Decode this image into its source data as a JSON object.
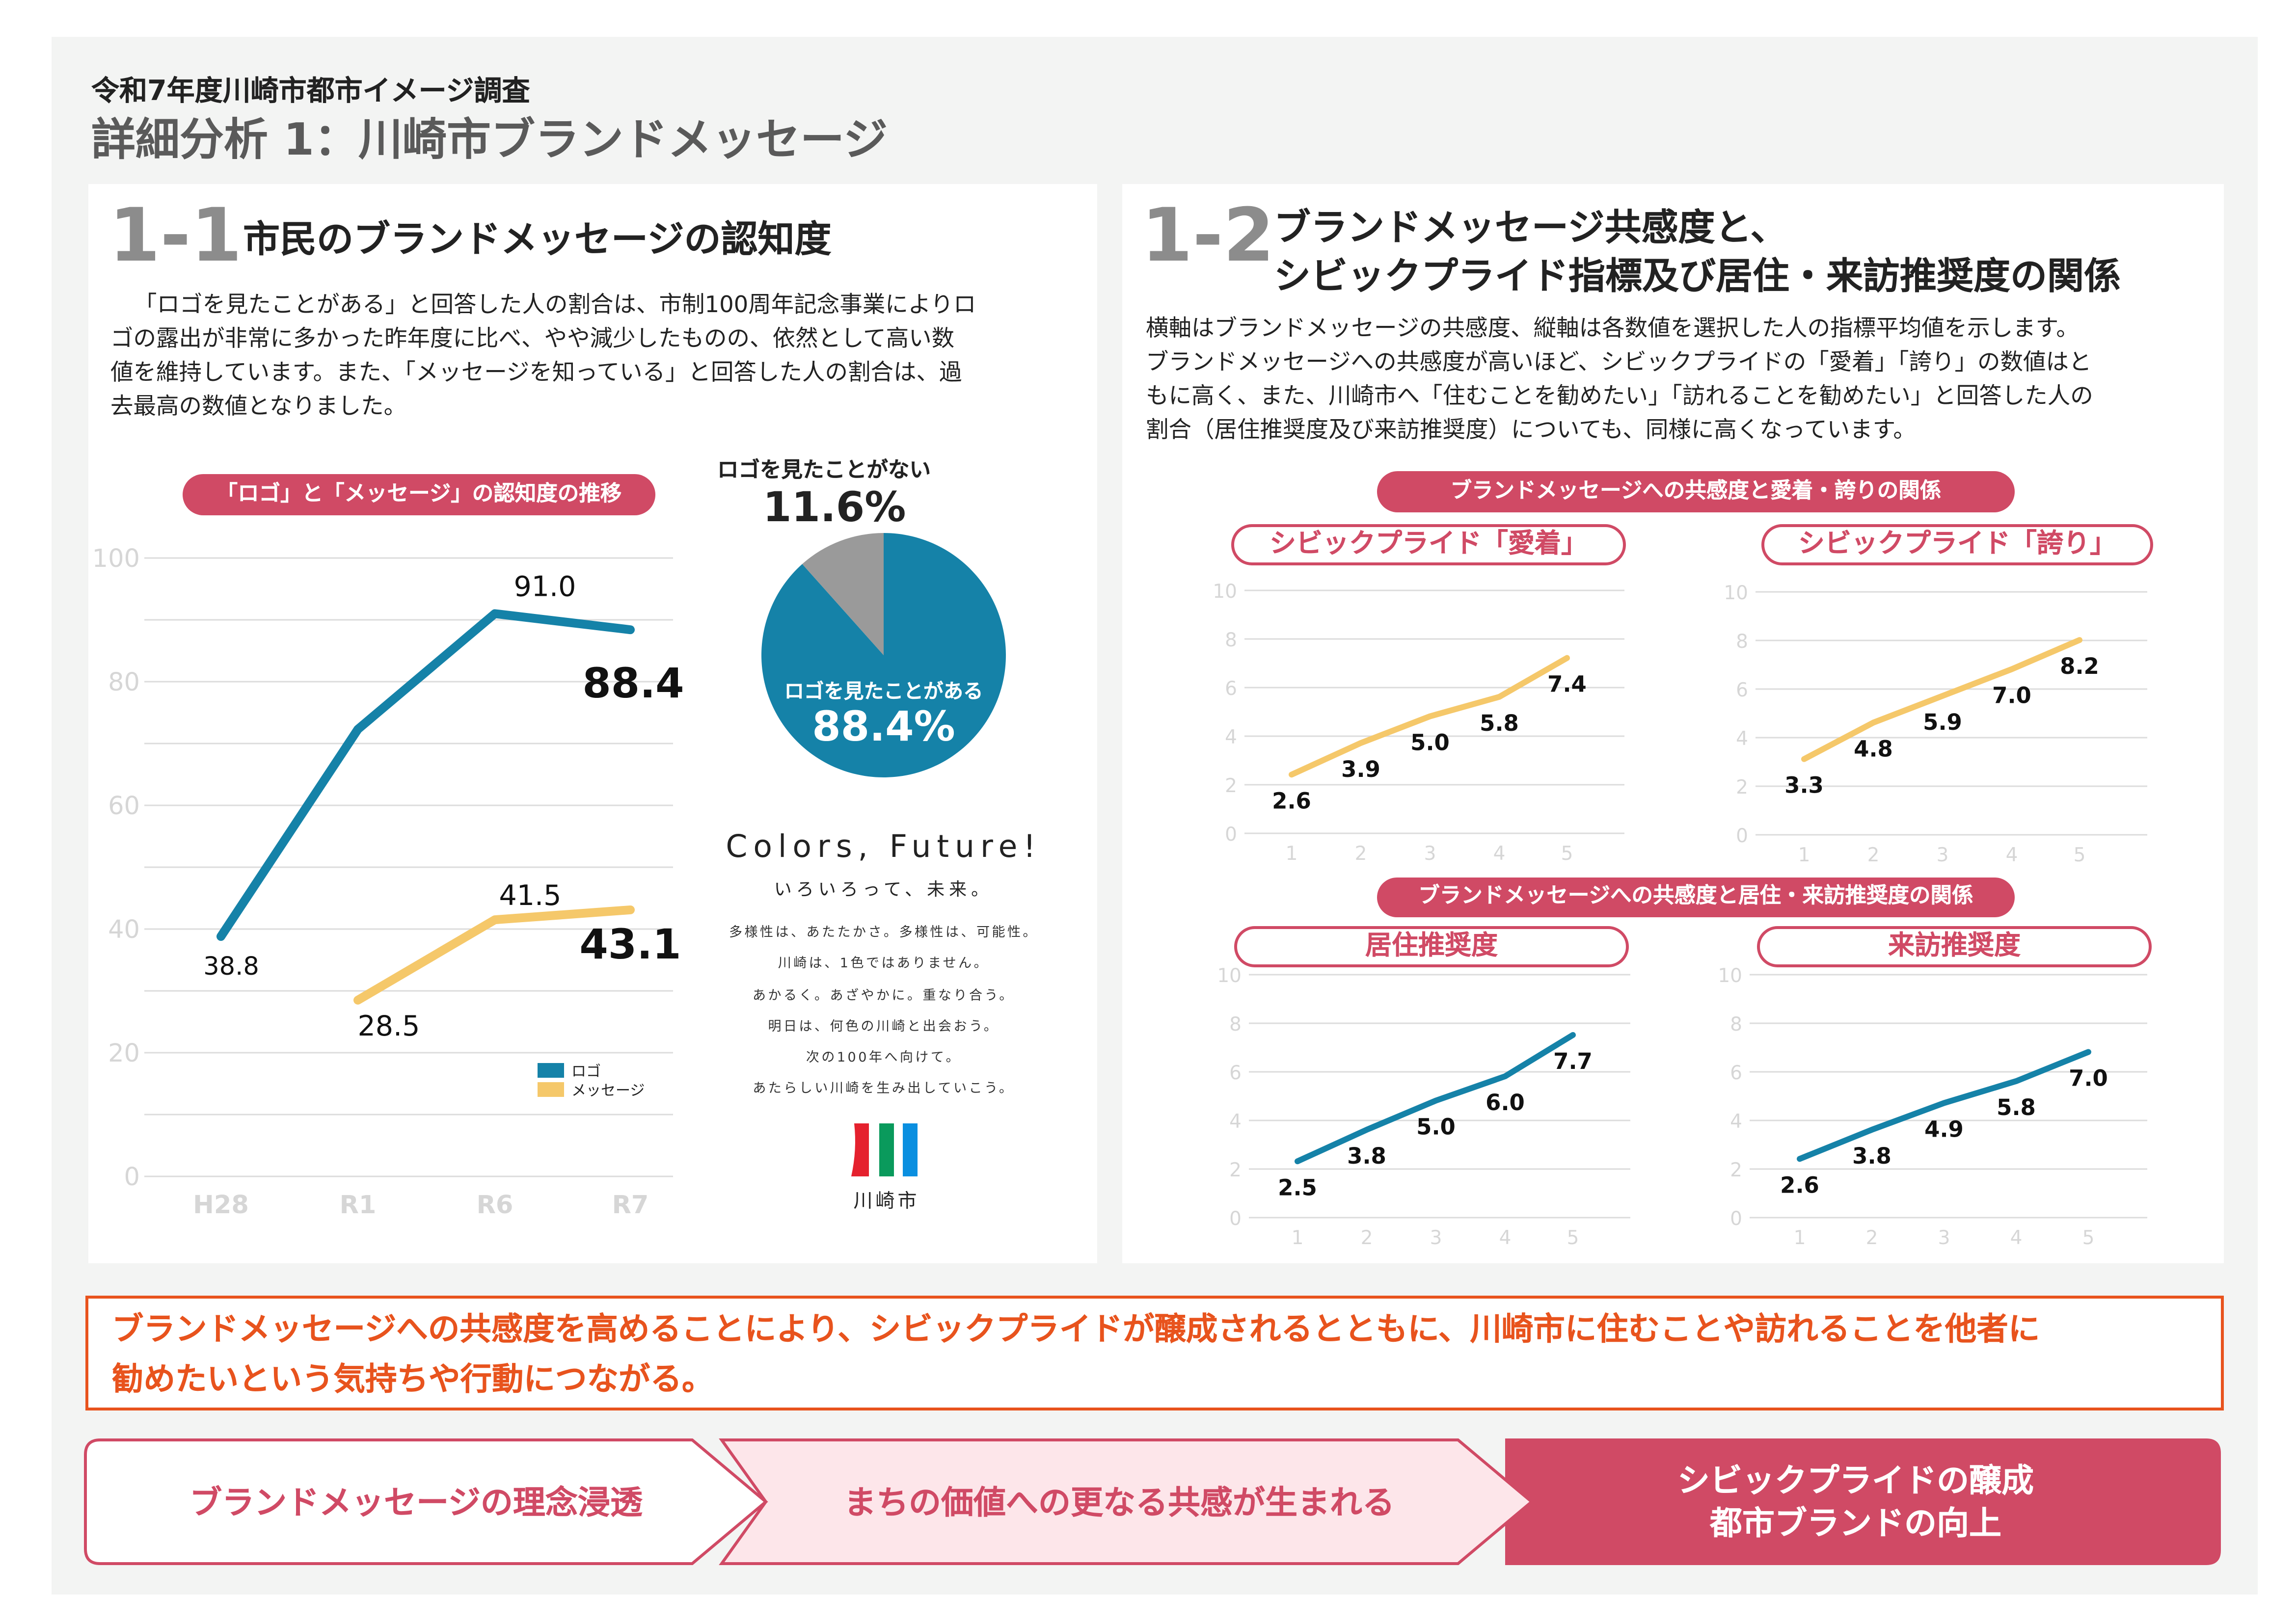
{
  "header": {
    "survey_title": "令和7年度川崎市都市イメージ調査",
    "page_title": "詳細分析 1：川崎市ブランドメッセージ"
  },
  "section1": {
    "number": "1-1",
    "title": "市民のブランドメッセージの認知度",
    "paragraph_lines": [
      "「ロゴを見たことがある」と回答した人の割合は、市制100周年記念事業によりロ",
      "ゴの露出が非常に多かった昨年度に比べ、やや減少したものの、依然として高い数",
      "値を維持しています。また、「メッセージを知っている」と回答した人の割合は、過",
      "去最高の数値となりました。"
    ],
    "pie_top_label": "ロゴを見たことがない",
    "pie_top_value": "11.6%",
    "pie_main_label": "ロゴを見たことがある",
    "pie_main_value": "88.4%",
    "brand": {
      "slogan": "Colors, Future!",
      "subtitle": "いろいろって、未来。",
      "lines": [
        "多様性は、あたたかさ。多様性は、可能性。",
        "川崎は、1色ではありません。",
        "あかるく。あざやかに。重なり合う。",
        "明日は、何色の川崎と出会おう。",
        "次の100年へ向けて。",
        "あたらしい川崎を生み出していこう。"
      ],
      "logo_text": "川崎市",
      "logo_colors": [
        "#e5212e",
        "#0a9a5c",
        "#0a8fe0"
      ]
    }
  },
  "section2": {
    "number": "1-2",
    "title_lines": [
      "ブランドメッセージ共感度と、",
      "シビックプライド指標及び居住・来訪推奨度の関係"
    ],
    "paragraph_lines": [
      "横軸はブランドメッセージの共感度、縦軸は各数値を選択した人の指標平均値を示します。",
      "ブランドメッセージへの共感度が高いほど、シビックプライドの「愛着」「誇り」の数値はと",
      "もに高く、また、川崎市へ「住むことを勧めたい」「訪れることを勧めたい」と回答した人の",
      "割合（居住推奨度及び来訪推奨度）についても、同様に高くなっています。"
    ],
    "group1_label": "ブランドメッセージへの共感度と愛着・誇りの関係",
    "group2_label": "ブランドメッセージへの共感度と居住・来訪推奨度の関係"
  },
  "conclusion_lines": [
    "ブランドメッセージへの共感度を高めることにより、シビックプライドが醸成されるとともに、川崎市に住むことや訪れることを他者に",
    "勧めたいという気持ちや行動につながる。"
  ],
  "flow": [
    {
      "label": "ブランドメッセージの理念浸透"
    },
    {
      "label": "まちの価値への更なる共感が生まれる"
    },
    {
      "label_lines": [
        "シビックプライドの醸成",
        "都市ブランドの向上"
      ]
    }
  ],
  "colors": {
    "accent": "#d04a65",
    "logo_blue": "#1582a8",
    "message_yellow": "#f5c86a",
    "orange": "#e8531d",
    "pie_gray": "#9a9a9a",
    "light_pink": "#fde6ea"
  },
  "chart_data": [
    {
      "type": "line",
      "title": "「ロゴ」と「メッセージ」の認知度の推移",
      "categories": [
        "H28",
        "R1",
        "R6",
        "R7"
      ],
      "ylim": [
        0,
        100
      ],
      "yticks": [
        "0",
        "20",
        "40",
        "60",
        "80",
        "100"
      ],
      "grid": true,
      "legend": "bottom-right",
      "series": [
        {
          "name": "ロゴ",
          "color": "#1582a8",
          "values": [
            38.8,
            72.3,
            91.0,
            88.4
          ],
          "labels": [
            "38.8",
            "",
            "91.0",
            "88.4"
          ]
        },
        {
          "name": "メッセージ",
          "color": "#f5c86a",
          "values": [
            null,
            28.5,
            41.5,
            43.1
          ],
          "labels": [
            "",
            "28.5",
            "41.5",
            "43.1"
          ]
        }
      ]
    },
    {
      "type": "pie",
      "slices": [
        {
          "label": "ロゴを見たことがある",
          "value": 88.4,
          "color": "#1582a8"
        },
        {
          "label": "ロゴを見たことがない",
          "value": 11.6,
          "color": "#9a9a9a"
        }
      ]
    },
    {
      "type": "line",
      "title": "シビックプライド「愛着」",
      "categories": [
        "1",
        "2",
        "3",
        "4",
        "5"
      ],
      "ylim": [
        0,
        10
      ],
      "yticks": [
        "0",
        "2",
        "4",
        "6",
        "8",
        "10"
      ],
      "grid": true,
      "color": "#f5c86a",
      "values": [
        2.6,
        3.9,
        5.0,
        5.8,
        7.4
      ],
      "labels": [
        "2.6",
        "3.9",
        "5.0",
        "5.8",
        "7.4"
      ]
    },
    {
      "type": "line",
      "title": "シビックプライド「誇り」",
      "categories": [
        "1",
        "2",
        "3",
        "4",
        "5"
      ],
      "ylim": [
        0,
        10
      ],
      "yticks": [
        "0",
        "2",
        "4",
        "6",
        "8",
        "10"
      ],
      "grid": true,
      "color": "#f5c86a",
      "values": [
        3.3,
        4.8,
        5.9,
        7.0,
        8.2
      ],
      "labels": [
        "3.3",
        "4.8",
        "5.9",
        "7.0",
        "8.2"
      ]
    },
    {
      "type": "line",
      "title": "居住推奨度",
      "categories": [
        "1",
        "2",
        "3",
        "4",
        "5"
      ],
      "ylim": [
        0,
        10
      ],
      "yticks": [
        "0",
        "2",
        "4",
        "6",
        "8",
        "10"
      ],
      "grid": true,
      "color": "#1582a8",
      "values": [
        2.5,
        3.8,
        5.0,
        6.0,
        7.7
      ],
      "labels": [
        "2.5",
        "3.8",
        "5.0",
        "6.0",
        "7.7"
      ]
    },
    {
      "type": "line",
      "title": "来訪推奨度",
      "categories": [
        "1",
        "2",
        "3",
        "4",
        "5"
      ],
      "ylim": [
        0,
        10
      ],
      "yticks": [
        "0",
        "2",
        "4",
        "6",
        "8",
        "10"
      ],
      "grid": true,
      "color": "#1582a8",
      "values": [
        2.6,
        3.8,
        4.9,
        5.8,
        7.0
      ],
      "labels": [
        "2.6",
        "3.8",
        "4.9",
        "5.8",
        "7.0"
      ]
    }
  ]
}
